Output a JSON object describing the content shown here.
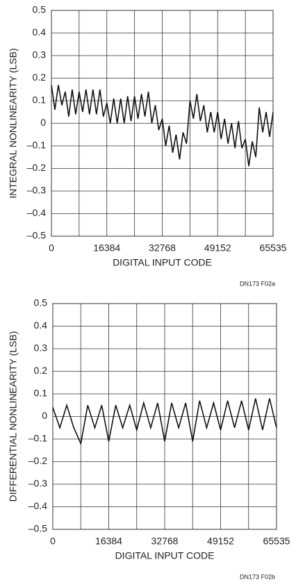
{
  "chart_data": [
    {
      "type": "line",
      "y_label": "INTEGRAL NONLINEARITY (LSB)",
      "x_label": "DIGITAL INPUT CODE",
      "note": "DN173 F02a",
      "xlim": [
        0,
        65535
      ],
      "xticks": [
        0,
        16384,
        32768,
        49152,
        65535
      ],
      "ylim": [
        -0.5,
        0.5
      ],
      "yticks": [
        {
          "value": -0.5,
          "label": "–0.5"
        },
        {
          "value": -0.4,
          "label": "–0.4"
        },
        {
          "value": -0.3,
          "label": "–0.3"
        },
        {
          "value": -0.2,
          "label": "–0.2"
        },
        {
          "value": -0.1,
          "label": "–0.1"
        },
        0,
        0.1,
        0.2,
        0.3,
        0.4,
        0.5
      ],
      "grid": true,
      "series": [
        {
          "color": "#111111",
          "x": [
            0,
            1024,
            2048,
            3072,
            4096,
            5120,
            6144,
            7168,
            8192,
            9216,
            10240,
            11264,
            12288,
            13312,
            14336,
            15360,
            16384,
            17408,
            18432,
            19456,
            20480,
            21504,
            22528,
            23552,
            24576,
            25600,
            26624,
            27648,
            28672,
            29696,
            30720,
            31744,
            32768,
            33792,
            34816,
            35840,
            36864,
            37888,
            38912,
            39936,
            40960,
            41984,
            43008,
            44032,
            45056,
            46080,
            47104,
            48128,
            49152,
            50176,
            51200,
            52224,
            53248,
            54272,
            55296,
            56320,
            57344,
            58368,
            59392,
            60416,
            61440,
            62464,
            63488,
            64512,
            65535
          ],
          "values": [
            0.17,
            0.06,
            0.17,
            0.08,
            0.14,
            0.03,
            0.15,
            0.04,
            0.14,
            0.05,
            0.15,
            0.04,
            0.15,
            0.04,
            0.15,
            0.03,
            0.09,
            0.0,
            0.11,
            0.0,
            0.11,
            0.0,
            0.12,
            0.01,
            0.12,
            0.02,
            0.13,
            0.03,
            0.14,
            0.0,
            0.08,
            -0.03,
            0.02,
            -0.1,
            -0.01,
            -0.13,
            -0.05,
            -0.16,
            -0.04,
            -0.09,
            0.1,
            0.02,
            0.13,
            0.01,
            0.08,
            -0.04,
            0.05,
            -0.04,
            0.05,
            -0.07,
            0.02,
            -0.09,
            0.0,
            -0.11,
            0.01,
            -0.11,
            -0.07,
            -0.19,
            -0.08,
            -0.15,
            0.07,
            -0.04,
            0.05,
            -0.06,
            0.05
          ]
        }
      ]
    },
    {
      "type": "line",
      "y_label": "DIFFERENTIAL NONLINEARITY (LSB)",
      "x_label": "DIGITAL INPUT CODE",
      "note": "DN173 F02b",
      "xlim": [
        0,
        65535
      ],
      "xticks": [
        0,
        16384,
        32768,
        49152,
        65535
      ],
      "ylim": [
        -0.5,
        0.5
      ],
      "yticks": [
        {
          "value": -0.5,
          "label": "–0.5"
        },
        {
          "value": -0.4,
          "label": "–0.4"
        },
        {
          "value": -0.3,
          "label": "–0.3"
        },
        {
          "value": -0.2,
          "label": "–0.2"
        },
        {
          "value": -0.1,
          "label": "–0.1"
        },
        0,
        0.1,
        0.2,
        0.3,
        0.4,
        0.5
      ],
      "grid": true,
      "series": [
        {
          "color": "#111111",
          "x": [
            0,
            2048,
            4096,
            6144,
            8192,
            10240,
            12288,
            14336,
            16384,
            18432,
            20480,
            22528,
            24576,
            26624,
            28672,
            30720,
            32768,
            34816,
            36864,
            38912,
            40960,
            43008,
            45056,
            47104,
            49152,
            51200,
            53248,
            55296,
            57344,
            59392,
            61440,
            63488,
            65535
          ],
          "values": [
            0.04,
            -0.05,
            0.05,
            -0.05,
            -0.12,
            0.05,
            -0.05,
            0.05,
            -0.11,
            0.05,
            -0.05,
            0.05,
            -0.06,
            0.06,
            -0.05,
            0.06,
            -0.11,
            0.06,
            -0.05,
            0.06,
            -0.11,
            0.07,
            -0.05,
            0.06,
            -0.06,
            0.07,
            -0.05,
            0.07,
            -0.06,
            0.08,
            -0.06,
            0.08,
            -0.05
          ]
        }
      ]
    }
  ]
}
